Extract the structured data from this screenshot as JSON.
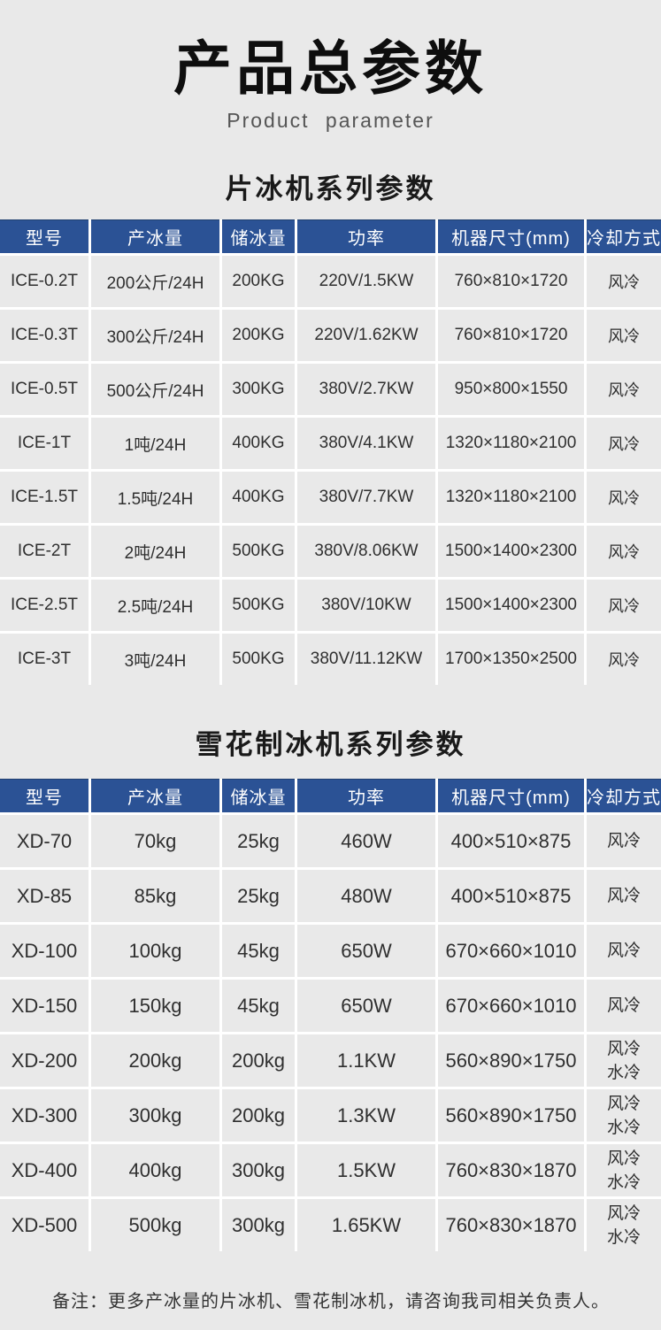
{
  "page": {
    "title": "产品总参数",
    "subtitle": "Product parameter",
    "note": "备注：更多产冰量的片冰机、雪花制冰机，请咨询我司相关负责人。"
  },
  "colors": {
    "page_bg": "#e9e9e9",
    "table_header_bg": "#2b5295",
    "table_header_text": "#ffffff",
    "grid_line": "#ffffff",
    "body_text": "#2f2f2f"
  },
  "column_keys": [
    "model",
    "ice-production",
    "ice-storage",
    "power",
    "dimensions",
    "cooling"
  ],
  "tables": [
    {
      "title": "片冰机系列参数",
      "columns": [
        "型号",
        "产冰量",
        "储冰量",
        "功率",
        "机器尺寸(mm)",
        "冷却方式"
      ],
      "rows": [
        [
          "ICE-0.2T",
          "200公斤/24H",
          "200KG",
          "220V/1.5KW",
          "760×810×1720",
          "风冷"
        ],
        [
          "ICE-0.3T",
          "300公斤/24H",
          "200KG",
          "220V/1.62KW",
          "760×810×1720",
          "风冷"
        ],
        [
          "ICE-0.5T",
          "500公斤/24H",
          "300KG",
          "380V/2.7KW",
          "950×800×1550",
          "风冷"
        ],
        [
          "ICE-1T",
          "1吨/24H",
          "400KG",
          "380V/4.1KW",
          "1320×1180×2100",
          "风冷"
        ],
        [
          "ICE-1.5T",
          "1.5吨/24H",
          "400KG",
          "380V/7.7KW",
          "1320×1180×2100",
          "风冷"
        ],
        [
          "ICE-2T",
          "2吨/24H",
          "500KG",
          "380V/8.06KW",
          "1500×1400×2300",
          "风冷"
        ],
        [
          "ICE-2.5T",
          "2.5吨/24H",
          "500KG",
          "380V/10KW",
          "1500×1400×2300",
          "风冷"
        ],
        [
          "ICE-3T",
          "3吨/24H",
          "500KG",
          "380V/11.12KW",
          "1700×1350×2500",
          "风冷"
        ]
      ]
    },
    {
      "title": "雪花制冰机系列参数",
      "columns": [
        "型号",
        "产冰量",
        "储冰量",
        "功率",
        "机器尺寸(mm)",
        "冷却方式"
      ],
      "rows": [
        [
          "XD-70",
          "70kg",
          "25kg",
          "460W",
          "400×510×875",
          "风冷"
        ],
        [
          "XD-85",
          "85kg",
          "25kg",
          "480W",
          "400×510×875",
          "风冷"
        ],
        [
          "XD-100",
          "100kg",
          "45kg",
          "650W",
          "670×660×1010",
          "风冷"
        ],
        [
          "XD-150",
          "150kg",
          "45kg",
          "650W",
          "670×660×1010",
          "风冷"
        ],
        [
          "XD-200",
          "200kg",
          "200kg",
          "1.1KW",
          "560×890×1750",
          "风冷\n水冷"
        ],
        [
          "XD-300",
          "300kg",
          "200kg",
          "1.3KW",
          "560×890×1750",
          "风冷\n水冷"
        ],
        [
          "XD-400",
          "400kg",
          "300kg",
          "1.5KW",
          "760×830×1870",
          "风冷\n水冷"
        ],
        [
          "XD-500",
          "500kg",
          "300kg",
          "1.65KW",
          "760×830×1870",
          "风冷\n水冷"
        ]
      ]
    }
  ]
}
